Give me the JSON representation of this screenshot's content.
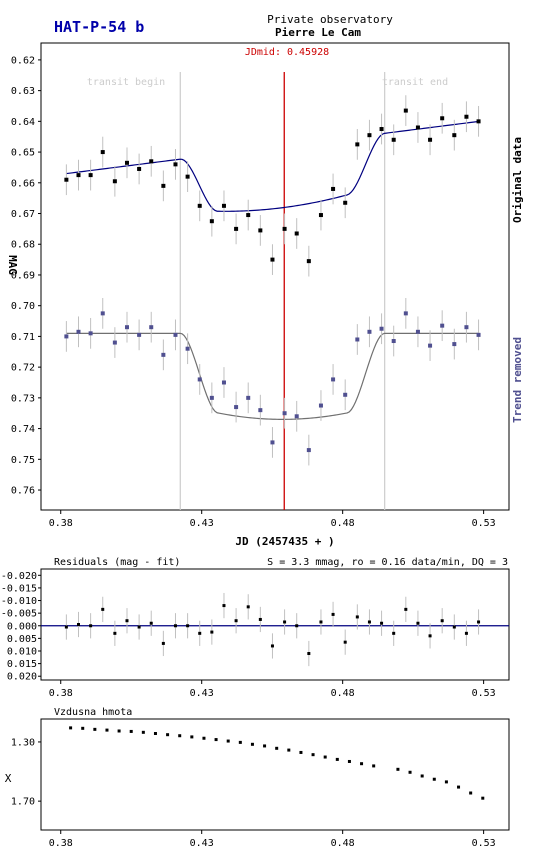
{
  "header": {
    "target": "HAT-P-54 b",
    "observatory": "Private observatory",
    "observer": "Pierre Le Cam",
    "jdmid_label": "JDmid: 0.45928"
  },
  "colors": {
    "title": "#0000aa",
    "jdmid": "#cc0000",
    "original": "#000000",
    "trend_removed": "#505090",
    "fit_original": "#000080",
    "fit_trend": "#707070",
    "error_bar": "#c0c0c0",
    "transit_line": "#cccccc",
    "zero_line": "#000080"
  },
  "chart_data": [
    {
      "type": "scatter",
      "title": "",
      "xlabel": "JD (2457435 + )",
      "ylabel": "MAG",
      "xlim": [
        0.373,
        0.539
      ],
      "ylim": [
        0.7665,
        0.6145
      ],
      "x_ticks": [
        "0.38",
        "0.43",
        "0.48",
        "0.53"
      ],
      "y_ticks": [
        "0.62",
        "0.63",
        "0.64",
        "0.65",
        "0.66",
        "0.67",
        "0.68",
        "0.69",
        "0.70",
        "0.71",
        "0.72",
        "0.73",
        "0.74",
        "0.75",
        "0.76"
      ],
      "annotations": {
        "transit_begin": "transit begin",
        "transit_end": "transit end",
        "jdmid": 0.45928,
        "transit_begin_x": 0.4224,
        "transit_end_x": 0.4949
      },
      "series_labels": {
        "original": "Original data",
        "trend_removed": "Trend removed"
      },
      "x": [
        0.382,
        0.3863,
        0.3906,
        0.3949,
        0.3992,
        0.4035,
        0.4078,
        0.4121,
        0.4164,
        0.4207,
        0.425,
        0.4293,
        0.4336,
        0.4379,
        0.4422,
        0.4465,
        0.4508,
        0.4551,
        0.4594,
        0.4637,
        0.468,
        0.4723,
        0.4766,
        0.4809,
        0.4852,
        0.4895,
        0.4938,
        0.4981,
        0.5024,
        0.5067,
        0.511,
        0.5153,
        0.5196,
        0.5239,
        0.5282
      ],
      "series": [
        {
          "name": "Original data",
          "values": [
            0.659,
            0.6575,
            0.6575,
            0.65,
            0.6595,
            0.6535,
            0.6555,
            0.653,
            0.661,
            0.654,
            0.658,
            0.6675,
            0.6725,
            0.6675,
            0.675,
            0.6705,
            0.6755,
            0.685,
            0.675,
            0.6765,
            0.6855,
            0.6705,
            0.662,
            0.6665,
            0.6475,
            0.6445,
            0.6425,
            0.646,
            0.6365,
            0.642,
            0.646,
            0.639,
            0.6445,
            0.6385,
            0.64
          ]
        },
        {
          "name": "Trend removed",
          "values": [
            0.71,
            0.7085,
            0.709,
            0.7025,
            0.712,
            0.707,
            0.7095,
            0.707,
            0.716,
            0.7095,
            0.714,
            0.724,
            0.73,
            0.725,
            0.733,
            0.73,
            0.734,
            0.7445,
            0.735,
            0.736,
            0.747,
            0.7325,
            0.724,
            0.729,
            0.711,
            0.7085,
            0.7075,
            0.7115,
            0.7025,
            0.7085,
            0.713,
            0.7065,
            0.7125,
            0.707,
            0.7095
          ]
        }
      ],
      "error": 0.005
    },
    {
      "type": "scatter",
      "title": "Residuals (mag - fit)",
      "stats": "S = 3.3 mmag, ro = 0.16 data/min, DQ = 3",
      "xlim": [
        0.373,
        0.539
      ],
      "ylim": [
        -0.0225,
        0.0215
      ],
      "y_ticks": [
        "-0.020",
        "-0.015",
        "-0.010",
        "-0.005",
        "0.000",
        "0.005",
        "0.010",
        "0.015",
        "0.020"
      ],
      "x_ticks": [
        "0.38",
        "0.43",
        "0.48",
        "0.53"
      ],
      "x": [
        0.382,
        0.3863,
        0.3906,
        0.3949,
        0.3992,
        0.4035,
        0.4078,
        0.4121,
        0.4164,
        0.4207,
        0.425,
        0.4293,
        0.4336,
        0.4379,
        0.4422,
        0.4465,
        0.4508,
        0.4551,
        0.4594,
        0.4637,
        0.468,
        0.4723,
        0.4766,
        0.4809,
        0.4852,
        0.4895,
        0.4938,
        0.4981,
        0.5024,
        0.5067,
        0.511,
        0.5153,
        0.5196,
        0.5239,
        0.5282
      ],
      "values": [
        0.0005,
        -0.0005,
        0.0,
        -0.0065,
        0.003,
        -0.002,
        0.0005,
        -0.001,
        0.007,
        0.0,
        0.0,
        0.003,
        0.0025,
        -0.008,
        -0.002,
        -0.0075,
        -0.0025,
        0.008,
        -0.0015,
        0.0,
        0.011,
        -0.0015,
        -0.0045,
        0.0065,
        -0.0035,
        -0.0015,
        -0.001,
        0.003,
        -0.0065,
        -0.001,
        0.004,
        -0.002,
        0.0005,
        0.003,
        -0.0015
      ]
    },
    {
      "type": "scatter",
      "title": "Vzdusna hmota",
      "ylabel": "X",
      "xlim": [
        0.373,
        0.539
      ],
      "ylim": [
        1.145,
        1.895
      ],
      "y_ticks": [
        "1.30",
        "1.70"
      ],
      "x_ticks": [
        "0.38",
        "0.43",
        "0.48",
        "0.53"
      ],
      "x": [
        0.3835,
        0.3878,
        0.3921,
        0.3964,
        0.4007,
        0.405,
        0.4093,
        0.4136,
        0.4179,
        0.4222,
        0.4265,
        0.4308,
        0.4351,
        0.4394,
        0.4437,
        0.448,
        0.4523,
        0.4566,
        0.4609,
        0.4652,
        0.4695,
        0.4738,
        0.4781,
        0.4824,
        0.4867,
        0.491,
        0.4996,
        0.5039,
        0.5082,
        0.5125,
        0.5168,
        0.5211,
        0.5254,
        0.5297
      ],
      "values": [
        1.205,
        1.208,
        1.215,
        1.22,
        1.226,
        1.229,
        1.235,
        1.243,
        1.251,
        1.258,
        1.266,
        1.275,
        1.284,
        1.294,
        1.303,
        1.316,
        1.327,
        1.343,
        1.355,
        1.371,
        1.386,
        1.402,
        1.418,
        1.432,
        1.447,
        1.462,
        1.485,
        1.505,
        1.53,
        1.552,
        1.57,
        1.605,
        1.645,
        1.68
      ]
    }
  ]
}
